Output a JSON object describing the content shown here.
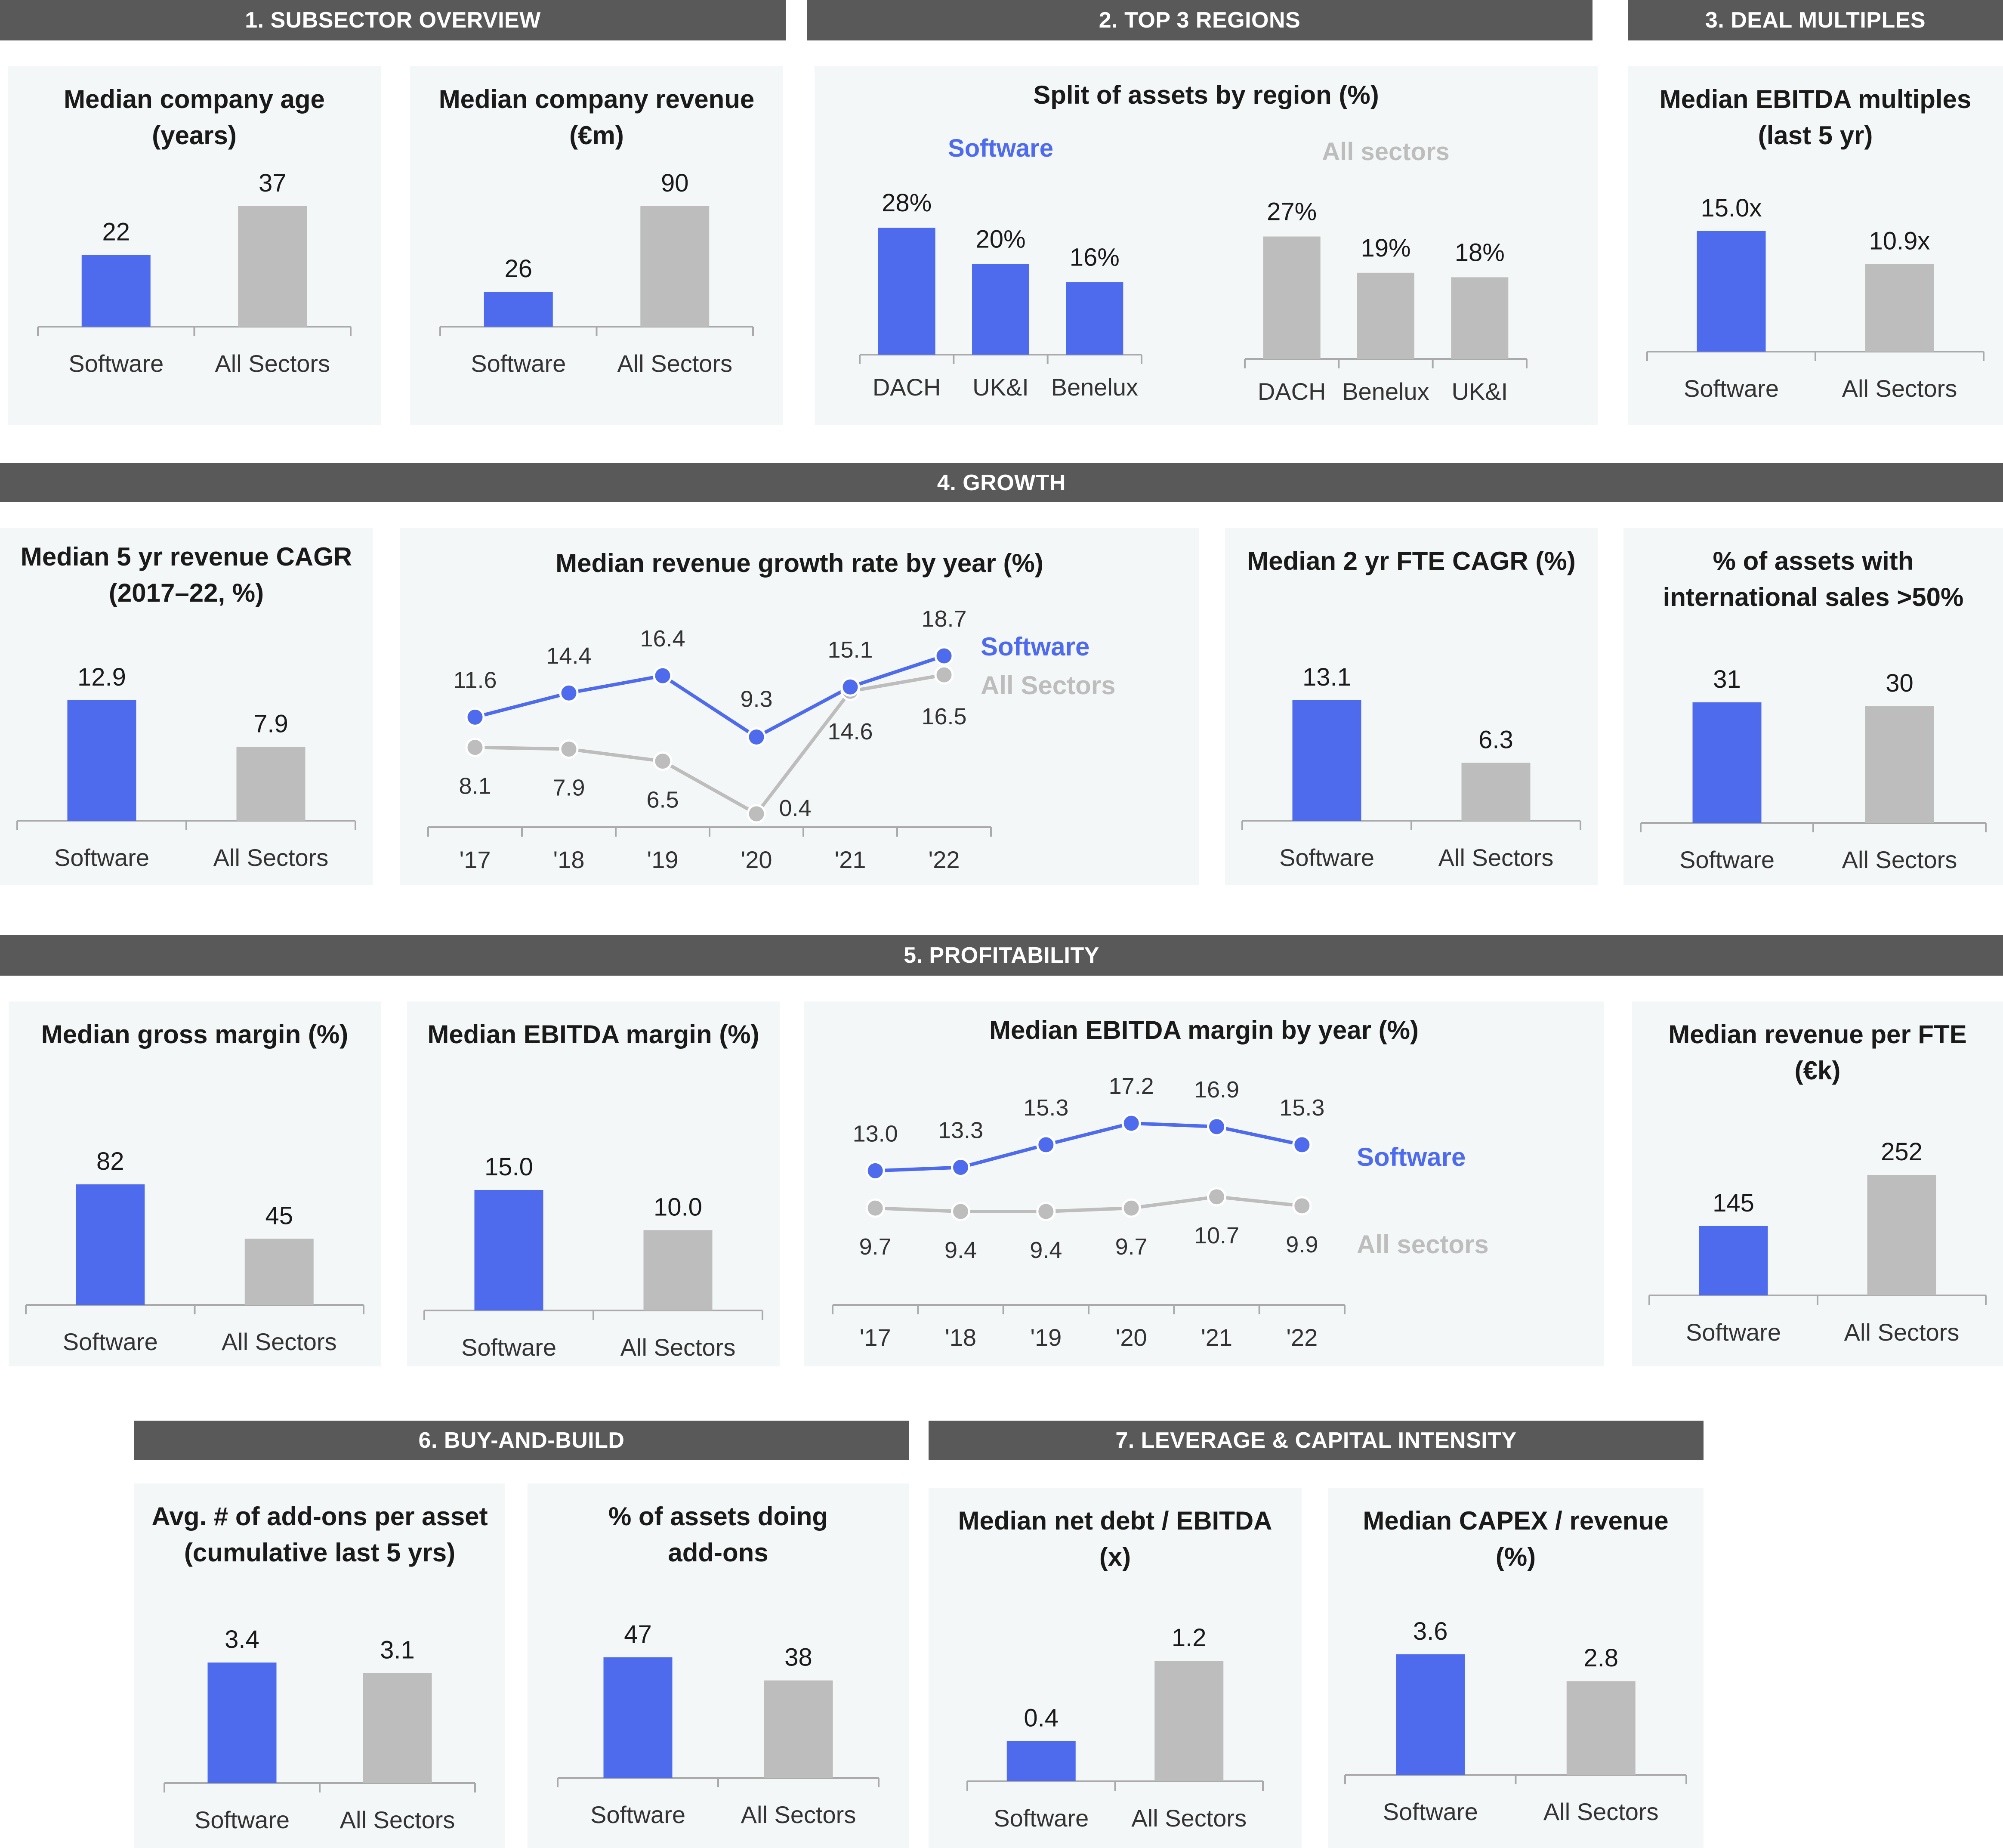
{
  "colors": {
    "software": "#4f6bed",
    "all": "#bdbdbd",
    "header_bg": "#595959",
    "panel_bg": "#f4f7f8",
    "axis": "#aaaaaa",
    "text": "#1a1a1a",
    "tick": "#333333"
  },
  "sections": {
    "s1": "1. SUBSECTOR OVERVIEW",
    "s2": "2. TOP 3 REGIONS",
    "s3": "3. DEAL MULTIPLES",
    "s4": "4. GROWTH",
    "s5": "5.  PROFITABILITY",
    "s6": "6. BUY-AND-BUILD",
    "s7": "7. LEVERAGE & CAPITAL INTENSITY"
  },
  "chart_data": {
    "age": {
      "type": "bar",
      "title": [
        "Median company age",
        "(years)"
      ],
      "categories": [
        "Software",
        "All Sectors"
      ],
      "values": [
        22,
        37
      ],
      "labels": [
        "22",
        "37"
      ],
      "ylim": [
        0,
        37
      ]
    },
    "revenue": {
      "type": "bar",
      "title": [
        "Median company revenue",
        "(€m)"
      ],
      "categories": [
        "Software",
        "All Sectors"
      ],
      "values": [
        26,
        90
      ],
      "labels": [
        "26",
        "90"
      ],
      "ylim": [
        0,
        90
      ]
    },
    "regions": {
      "type": "bar",
      "title": [
        "Split of assets by region (%)"
      ],
      "groups": [
        {
          "name": "Software",
          "categories": [
            "DACH",
            "UK&I",
            "Benelux"
          ],
          "values": [
            28,
            20,
            16
          ],
          "labels": [
            "28%",
            "20%",
            "16%"
          ]
        },
        {
          "name": "All sectors",
          "categories": [
            "DACH",
            "Benelux",
            "UK&I"
          ],
          "values": [
            27,
            19,
            18
          ],
          "labels": [
            "27%",
            "19%",
            "18%"
          ]
        }
      ],
      "ylim": [
        0,
        28
      ]
    },
    "ebitda_mult": {
      "type": "bar",
      "title": [
        "Median EBITDA multiples",
        "(last 5 yr)"
      ],
      "categories": [
        "Software",
        "All Sectors"
      ],
      "values": [
        15.0,
        10.9
      ],
      "labels": [
        "15.0x",
        "10.9x"
      ],
      "ylim": [
        0,
        15
      ]
    },
    "rev_cagr": {
      "type": "bar",
      "title": [
        "Median 5 yr revenue CAGR",
        "(2017–22, %)"
      ],
      "categories": [
        "Software",
        "All Sectors"
      ],
      "values": [
        12.9,
        7.9
      ],
      "labels": [
        "12.9",
        "7.9"
      ],
      "ylim": [
        0,
        12.9
      ]
    },
    "growth_by_year": {
      "type": "line",
      "title": [
        "Median revenue growth rate by year (%)"
      ],
      "x": [
        "'17",
        "'18",
        "'19",
        "'20",
        "'21",
        "'22"
      ],
      "series": [
        {
          "name": "Software",
          "values": [
            11.6,
            14.4,
            16.4,
            9.3,
            15.1,
            18.7
          ],
          "labels": [
            "11.6",
            "14.4",
            "16.4",
            "9.3",
            "15.1",
            "18.7"
          ]
        },
        {
          "name": "All Sectors",
          "values": [
            8.1,
            7.9,
            6.5,
            0.4,
            14.6,
            16.5
          ],
          "labels": [
            "8.1",
            "7.9",
            "6.5",
            "0.4",
            "14.6",
            "16.5"
          ]
        }
      ],
      "ylim": [
        0,
        18.7
      ]
    },
    "fte_cagr": {
      "type": "bar",
      "title": [
        "Median 2 yr FTE CAGR (%)"
      ],
      "categories": [
        "Software",
        "All Sectors"
      ],
      "values": [
        13.1,
        6.3
      ],
      "labels": [
        "13.1",
        "6.3"
      ],
      "ylim": [
        0,
        13.1
      ]
    },
    "intl_sales": {
      "type": "bar",
      "title": [
        "% of assets with",
        "international sales >50%"
      ],
      "categories": [
        "Software",
        "All Sectors"
      ],
      "values": [
        31,
        30
      ],
      "labels": [
        "31",
        "30"
      ],
      "ylim": [
        0,
        31
      ]
    },
    "gross_margin": {
      "type": "bar",
      "title": [
        "Median gross margin (%)"
      ],
      "categories": [
        "Software",
        "All Sectors"
      ],
      "values": [
        82,
        45
      ],
      "labels": [
        "82",
        "45"
      ],
      "ylim": [
        0,
        82
      ]
    },
    "ebitda_margin": {
      "type": "bar",
      "title": [
        "Median EBITDA margin (%)"
      ],
      "categories": [
        "Software",
        "All Sectors"
      ],
      "values": [
        15.0,
        10.0
      ],
      "labels": [
        "15.0",
        "10.0"
      ],
      "ylim": [
        0,
        15
      ]
    },
    "ebitda_by_year": {
      "type": "line",
      "title": [
        "Median EBITDA margin by year (%)"
      ],
      "x": [
        "'17",
        "'18",
        "'19",
        "'20",
        "'21",
        "'22"
      ],
      "series": [
        {
          "name": "Software",
          "values": [
            13.0,
            13.3,
            15.3,
            17.2,
            16.9,
            15.3
          ],
          "labels": [
            "13.0",
            "13.3",
            "15.3",
            "17.2",
            "16.9",
            "15.3"
          ]
        },
        {
          "name": "All sectors",
          "values": [
            9.7,
            9.4,
            9.4,
            9.7,
            10.7,
            9.9
          ],
          "labels": [
            "9.7",
            "9.4",
            "9.4",
            "9.7",
            "10.7",
            "9.9"
          ]
        }
      ],
      "ylim": [
        9.4,
        17.2
      ]
    },
    "rev_per_fte": {
      "type": "bar",
      "title": [
        "Median revenue per FTE",
        "(€k)"
      ],
      "categories": [
        "Software",
        "All Sectors"
      ],
      "values": [
        145,
        252
      ],
      "labels": [
        "145",
        "252"
      ],
      "ylim": [
        0,
        252
      ]
    },
    "addons_avg": {
      "type": "bar",
      "title": [
        "Avg. # of add-ons per asset",
        "(cumulative last 5 yrs)"
      ],
      "categories": [
        "Software",
        "All Sectors"
      ],
      "values": [
        3.4,
        3.1
      ],
      "labels": [
        "3.4",
        "3.1"
      ],
      "ylim": [
        0,
        3.4
      ]
    },
    "addons_pct": {
      "type": "bar",
      "title": [
        "% of assets doing",
        "add-ons"
      ],
      "categories": [
        "Software",
        "All Sectors"
      ],
      "values": [
        47,
        38
      ],
      "labels": [
        "47",
        "38"
      ],
      "ylim": [
        0,
        47
      ]
    },
    "net_debt": {
      "type": "bar",
      "title": [
        "Median net debt / EBITDA",
        "(x)"
      ],
      "categories": [
        "Software",
        "All Sectors"
      ],
      "values": [
        0.4,
        1.2
      ],
      "labels": [
        "0.4",
        "1.2"
      ],
      "ylim": [
        0,
        1.2
      ]
    },
    "capex": {
      "type": "bar",
      "title": [
        "Median CAPEX / revenue",
        "(%)"
      ],
      "categories": [
        "Software",
        "All Sectors"
      ],
      "values": [
        3.6,
        2.8
      ],
      "labels": [
        "3.6",
        "2.8"
      ],
      "ylim": [
        0,
        3.6
      ]
    }
  }
}
